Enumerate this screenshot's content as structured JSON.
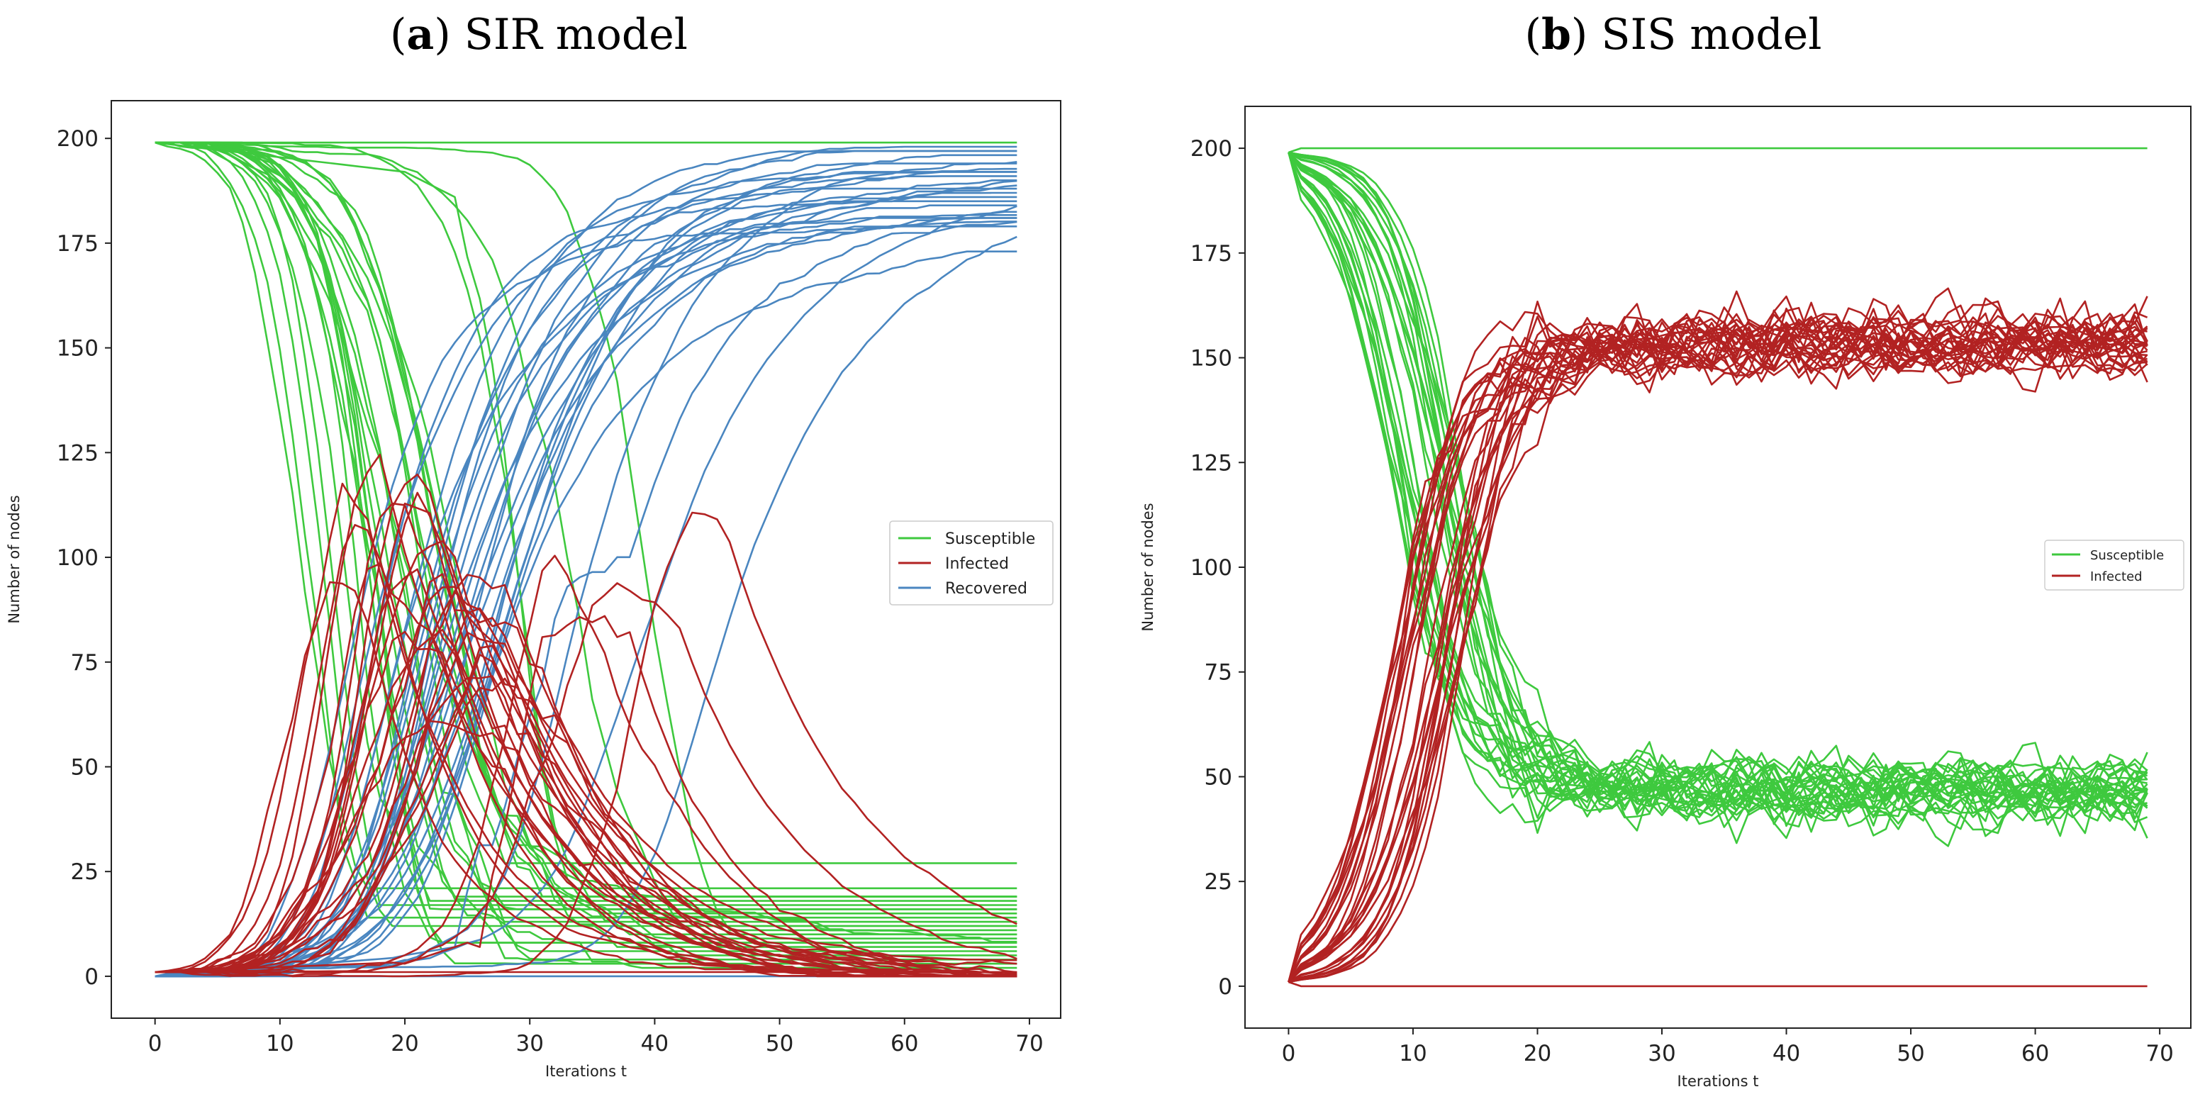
{
  "chart_data": [
    {
      "type": "line",
      "panel": "a",
      "title_prefix": "a",
      "title_text": "SIR model",
      "xlabel": "Iterations t",
      "ylabel": "Number of nodes",
      "xlim": [
        -3.5,
        72.5
      ],
      "ylim": [
        -10,
        209
      ],
      "xticks": [
        0,
        10,
        20,
        30,
        40,
        50,
        60,
        70
      ],
      "yticks": [
        0,
        25,
        50,
        75,
        100,
        125,
        150,
        175,
        200
      ],
      "legend_position": "center-right",
      "n_runs": 30,
      "series": [
        {
          "name": "Susceptible",
          "color": "#3ec93e",
          "runs_summary": {
            "start": 199,
            "end_min": 2,
            "end_max": 199,
            "no_outbreak_value": 199
          }
        },
        {
          "name": "Infected",
          "color": "#b22222",
          "runs_summary": {
            "start": 1,
            "peak_min": 72,
            "peak_max": 104,
            "peak_t_range": [
              15,
              37
            ],
            "end": 0
          }
        },
        {
          "name": "Recovered",
          "color": "#4a86c0",
          "runs_summary": {
            "start": 0,
            "end_min": 170,
            "end_max": 194
          }
        }
      ]
    },
    {
      "type": "line",
      "panel": "b",
      "title_prefix": "b",
      "title_text": "SIS model",
      "xlabel": "Iterations t",
      "ylabel": "Number of nodes",
      "xlim": [
        -3.5,
        72.5
      ],
      "ylim": [
        -10,
        210
      ],
      "xticks": [
        0,
        10,
        20,
        30,
        40,
        50,
        60,
        70
      ],
      "yticks": [
        0,
        25,
        50,
        75,
        100,
        125,
        150,
        175,
        200
      ],
      "legend_position": "center-right",
      "n_runs": 30,
      "series": [
        {
          "name": "Susceptible",
          "color": "#3ec93e",
          "runs_summary": {
            "start": 199,
            "equilibrium": 47,
            "no_outbreak_value": 200
          }
        },
        {
          "name": "Infected",
          "color": "#b22222",
          "runs_summary": {
            "start": 1,
            "equilibrium": 153,
            "no_outbreak_value": 0
          }
        }
      ]
    }
  ]
}
